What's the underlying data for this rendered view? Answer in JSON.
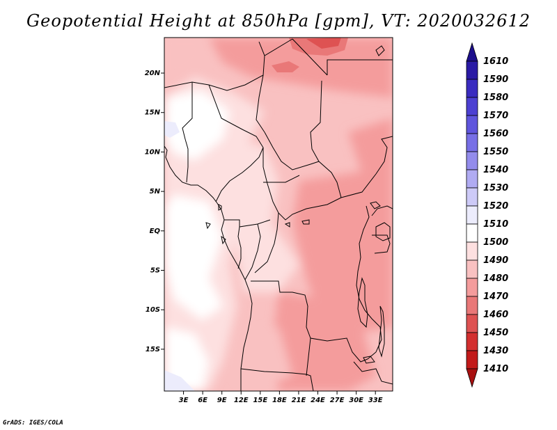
{
  "title": "Geopotential Height at 850hPa [gpm], VT: 2020032612",
  "credit": "GrADS: IGES/COLA",
  "map": {
    "lat_labels": [
      "20N",
      "15N",
      "10N",
      "5N",
      "EQ",
      "5S",
      "10S",
      "15S"
    ],
    "lon_labels": [
      "3E",
      "6E",
      "9E",
      "12E",
      "15E",
      "18E",
      "21E",
      "24E",
      "27E",
      "30E",
      "33E"
    ]
  },
  "colorbar": {
    "levels": [
      "1610",
      "1590",
      "1580",
      "1570",
      "1560",
      "1550",
      "1540",
      "1530",
      "1520",
      "1510",
      "1500",
      "1490",
      "1480",
      "1470",
      "1460",
      "1450",
      "1430",
      "1410"
    ],
    "colors": [
      "#1d0f8c",
      "#2a1aa5",
      "#3a2cc0",
      "#4c40d2",
      "#5f55dd",
      "#776fe6",
      "#938cec",
      "#b0abf2",
      "#cdcaf7",
      "#ececfc",
      "#ffffff",
      "#fde0e0",
      "#f9c1c1",
      "#f49c9c",
      "#e97878",
      "#de5252",
      "#d32f2f",
      "#c21a1a",
      "#a81010"
    ]
  }
}
